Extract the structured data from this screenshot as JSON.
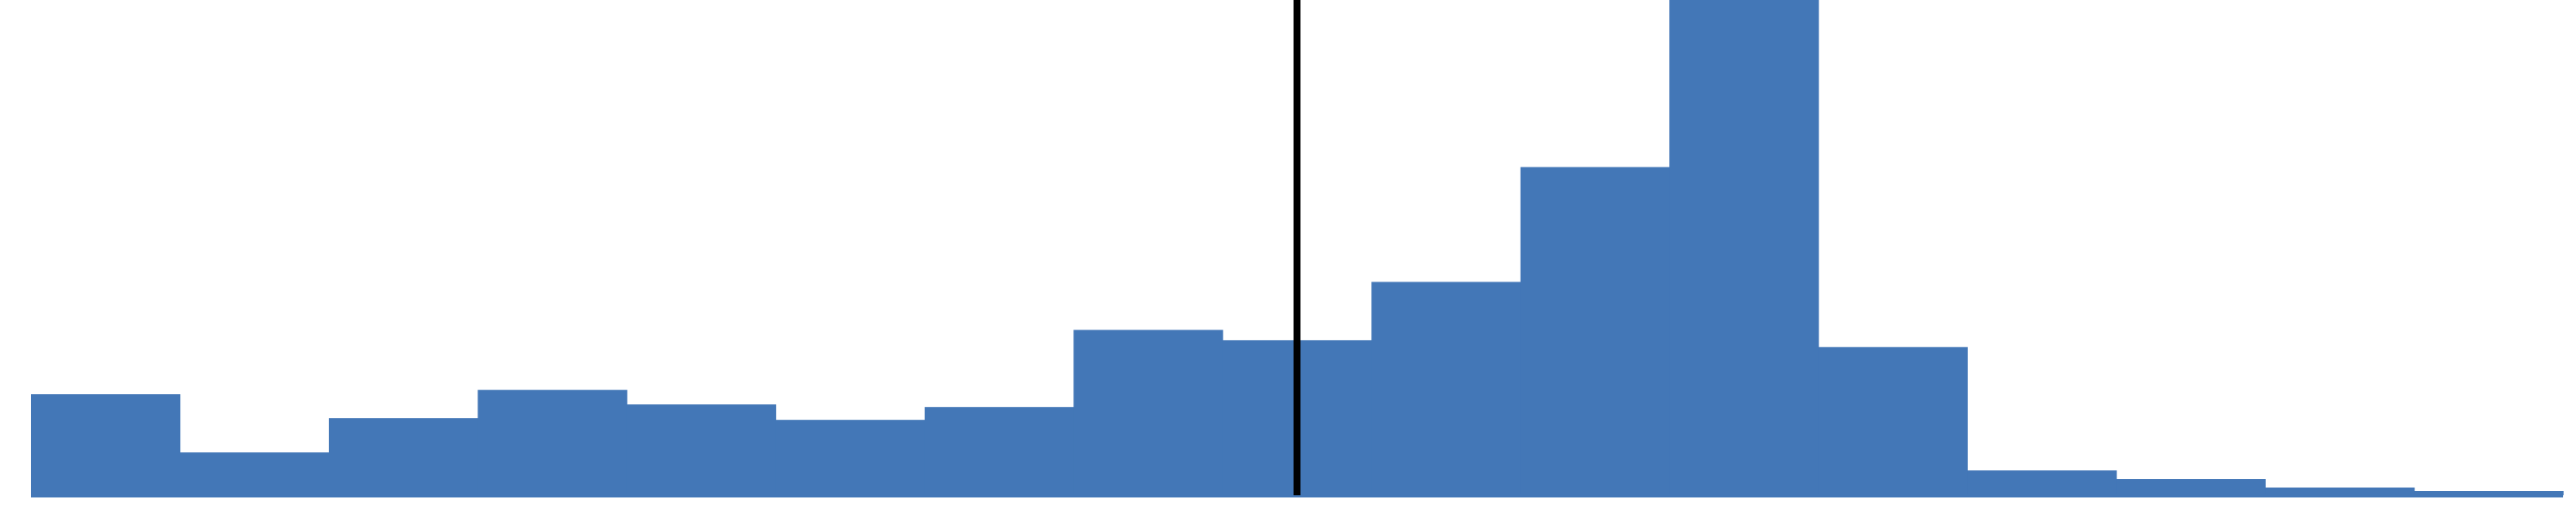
{
  "chart_data": {
    "type": "bar",
    "categories": [
      "",
      "",
      "",
      "",
      "",
      "",
      "",
      "",
      "",
      "",
      "",
      "",
      "",
      "",
      "",
      "",
      ""
    ],
    "values": [
      118,
      50,
      90,
      123,
      106,
      88,
      103,
      193,
      181,
      249,
      383,
      578,
      173,
      29,
      19,
      9,
      5
    ],
    "ylim": [
      0,
      578
    ],
    "grid": false,
    "legend": "none",
    "reference_line": {
      "position": 8.5,
      "color": "#000000"
    },
    "colors": {
      "bar": "#4377B7",
      "axis": "#000000",
      "background": "#ffffff"
    }
  }
}
